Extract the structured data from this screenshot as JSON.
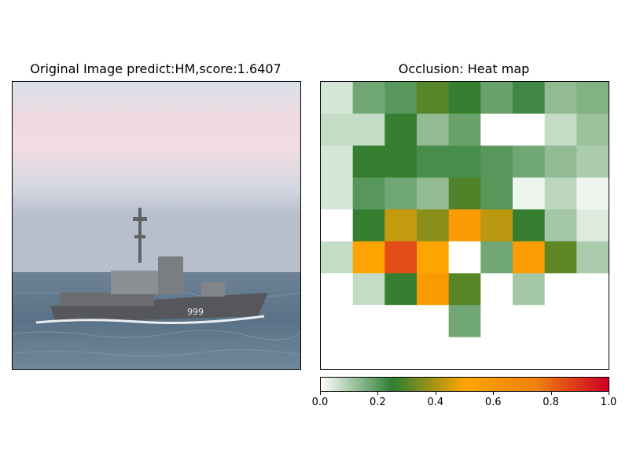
{
  "left_panel": {
    "title": "Original Image predict:HM,score:1.6407",
    "hull_number": "999"
  },
  "chart_data": {
    "type": "heatmap",
    "title": "Occlusion: Heat map",
    "rows": 9,
    "cols": 9,
    "values": [
      [
        0.05,
        0.17,
        0.2,
        0.3,
        0.26,
        0.18,
        0.23,
        0.13,
        0.15
      ],
      [
        0.07,
        0.07,
        0.26,
        0.13,
        0.18,
        0.0,
        0.0,
        0.07,
        0.12
      ],
      [
        0.05,
        0.26,
        0.26,
        0.22,
        0.22,
        0.2,
        0.17,
        0.13,
        0.1
      ],
      [
        0.05,
        0.2,
        0.17,
        0.13,
        0.29,
        0.2,
        0.02,
        0.08,
        0.02
      ],
      [
        0.0,
        0.26,
        0.43,
        0.36,
        0.56,
        0.42,
        0.26,
        0.11,
        0.04
      ],
      [
        0.07,
        0.51,
        0.85,
        0.51,
        0.0,
        0.17,
        0.55,
        0.31,
        0.1
      ],
      [
        0.0,
        0.07,
        0.26,
        0.57,
        0.3,
        0.0,
        0.11,
        0.0,
        0.0
      ],
      [
        0.0,
        0.0,
        0.0,
        0.0,
        0.17,
        0.0,
        0.0,
        0.0,
        0.0
      ],
      [
        0.0,
        0.0,
        0.0,
        0.0,
        0.0,
        0.0,
        0.0,
        0.0,
        0.0
      ]
    ],
    "colorbar": {
      "range": [
        0.0,
        1.0
      ],
      "ticks": [
        "0.0",
        "0.2",
        "0.4",
        "0.6",
        "0.8",
        "1.0"
      ],
      "colors": [
        "#ffffff",
        "#2e7d32",
        "#ffa500",
        "#f08010",
        "#cc0022"
      ]
    }
  }
}
